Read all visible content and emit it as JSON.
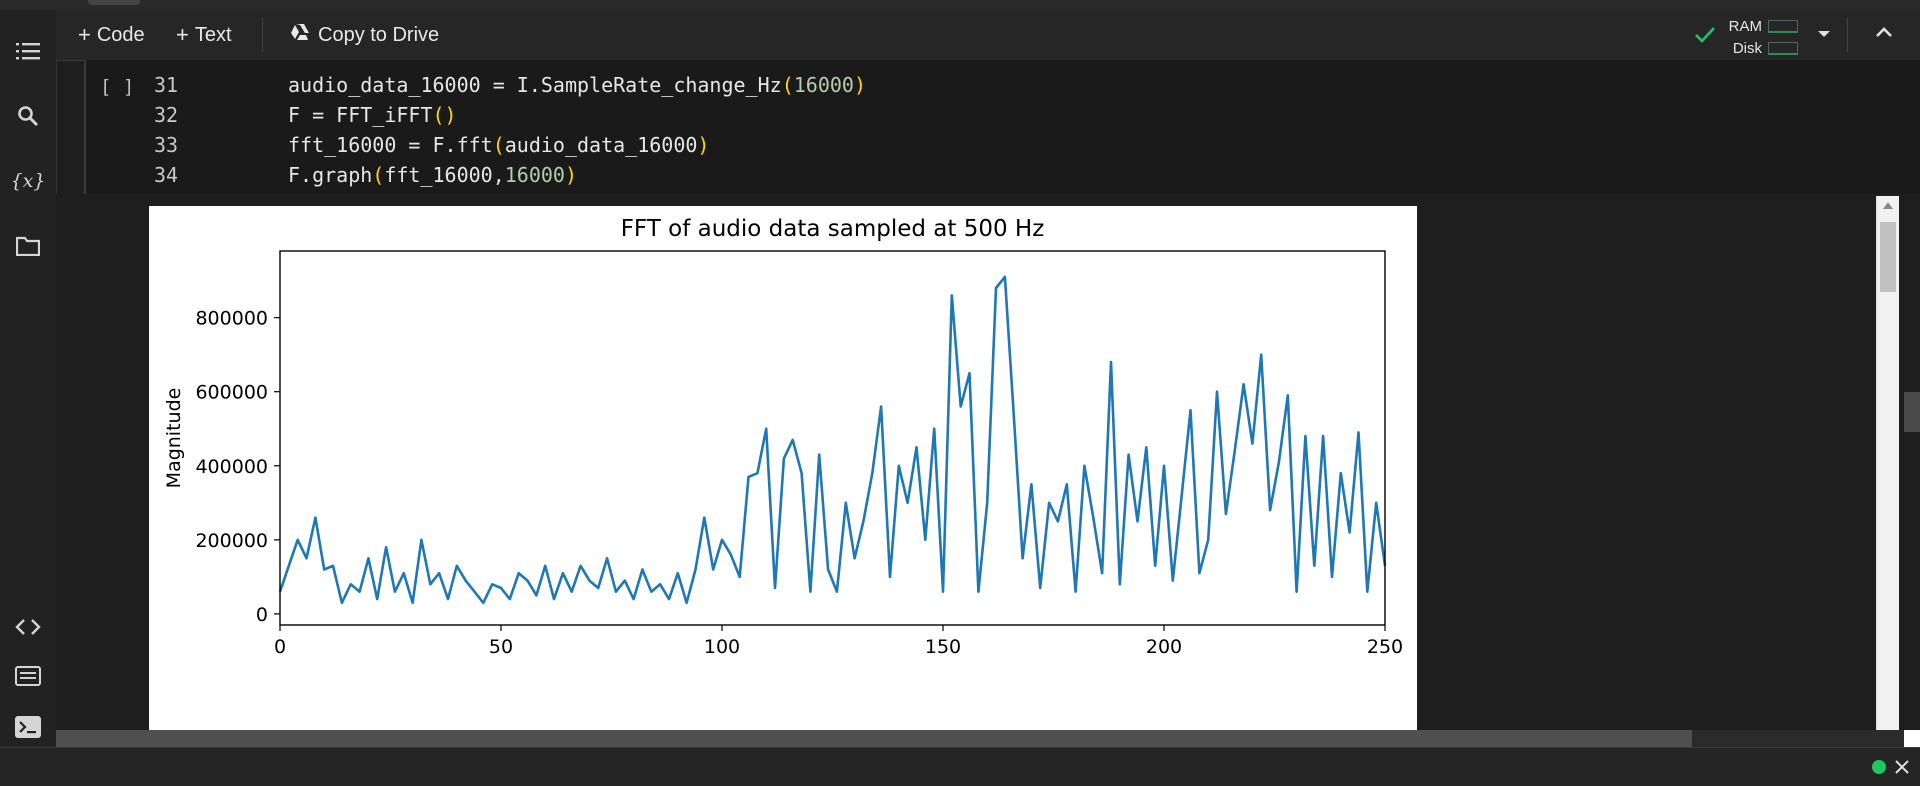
{
  "toolbar": {
    "add_code_label": "Code",
    "add_text_label": "Text",
    "copy_to_drive_label": "Copy to Drive",
    "ram_label": "RAM",
    "disk_label": "Disk"
  },
  "code_cell": {
    "run_indicator": "[ ]",
    "lines": [
      {
        "num": "31",
        "parts": [
          [
            "t",
            "audio_data_16000 = I.SampleRate_change_Hz"
          ],
          [
            "p",
            "("
          ],
          [
            "n",
            "16000"
          ],
          [
            "p",
            ")"
          ]
        ]
      },
      {
        "num": "32",
        "parts": [
          [
            "t",
            "F = FFT_iFFT"
          ],
          [
            "p",
            "()"
          ]
        ]
      },
      {
        "num": "33",
        "parts": [
          [
            "t",
            "fft_16000 = F.fft"
          ],
          [
            "p",
            "("
          ],
          [
            "t",
            "audio_data_16000"
          ],
          [
            "p",
            ")"
          ]
        ]
      },
      {
        "num": "34",
        "parts": [
          [
            "t",
            "F.graph"
          ],
          [
            "p",
            "("
          ],
          [
            "t",
            "fft_16000,"
          ],
          [
            "n",
            "16000"
          ],
          [
            "p",
            ")"
          ]
        ]
      }
    ]
  },
  "colors": {
    "line": "#1f77b4",
    "status_connected": "#1ec763",
    "ram_ok": "#2e8b57"
  },
  "icons": [
    "table-of-contents-icon",
    "search-icon",
    "variables-icon",
    "folder-icon",
    "code-snippets-icon",
    "command-palette-icon",
    "terminal-icon",
    "check-icon",
    "caret-down-icon",
    "collapse-icon",
    "close-icon",
    "drive-icon"
  ],
  "chart_data": {
    "type": "line",
    "title": "FFT of audio data sampled at 500 Hz",
    "xlabel": "",
    "ylabel": "Magnitude",
    "xlim": [
      0,
      250
    ],
    "ylim": [
      -30000,
      980000
    ],
    "xticks": [
      "0",
      "50",
      "100",
      "150",
      "200",
      "250"
    ],
    "yticks": [
      "0",
      "200000",
      "400000",
      "600000",
      "800000"
    ],
    "grid": false,
    "series": [
      {
        "x": [
          0,
          2,
          4,
          6,
          8,
          10,
          12,
          14,
          16,
          18,
          20,
          22,
          24,
          26,
          28,
          30,
          32,
          34,
          36,
          38,
          40,
          42,
          44,
          46,
          48,
          50,
          52,
          54,
          56,
          58,
          60,
          62,
          64,
          66,
          68,
          70,
          72,
          74,
          76,
          78,
          80,
          82,
          84,
          86,
          88,
          90,
          92,
          94,
          96,
          98,
          100,
          102,
          104,
          106,
          108,
          110,
          112,
          114,
          116,
          118,
          120,
          122,
          124,
          126,
          128,
          130,
          132,
          134,
          136,
          138,
          140,
          142,
          144,
          146,
          148,
          150,
          152,
          154,
          156,
          158,
          160,
          162,
          164,
          166,
          168,
          170,
          172,
          174,
          176,
          178,
          180,
          182,
          184,
          186,
          188,
          190,
          192,
          194,
          196,
          198,
          200,
          202,
          204,
          206,
          208,
          210,
          212,
          214,
          216,
          218,
          220,
          222,
          224,
          226,
          228,
          230,
          232,
          234,
          236,
          238,
          240,
          242,
          244,
          246,
          248,
          250
        ],
        "y": [
          60000,
          130000,
          200000,
          150000,
          260000,
          120000,
          130000,
          30000,
          80000,
          60000,
          150000,
          40000,
          180000,
          60000,
          110000,
          30000,
          200000,
          80000,
          110000,
          40000,
          130000,
          90000,
          60000,
          30000,
          80000,
          70000,
          40000,
          110000,
          90000,
          50000,
          130000,
          40000,
          110000,
          60000,
          130000,
          90000,
          70000,
          150000,
          60000,
          90000,
          40000,
          120000,
          60000,
          80000,
          40000,
          110000,
          30000,
          120000,
          260000,
          120000,
          200000,
          160000,
          100000,
          370000,
          380000,
          500000,
          70000,
          420000,
          470000,
          380000,
          60000,
          430000,
          120000,
          60000,
          300000,
          150000,
          250000,
          380000,
          560000,
          100000,
          400000,
          300000,
          450000,
          200000,
          500000,
          60000,
          860000,
          560000,
          650000,
          60000,
          300000,
          880000,
          910000,
          540000,
          150000,
          350000,
          70000,
          300000,
          250000,
          350000,
          60000,
          400000,
          260000,
          110000,
          680000,
          80000,
          430000,
          250000,
          450000,
          130000,
          400000,
          90000,
          320000,
          550000,
          110000,
          200000,
          600000,
          270000,
          440000,
          620000,
          460000,
          700000,
          280000,
          410000,
          590000,
          60000,
          480000,
          130000,
          480000,
          100000,
          380000,
          220000,
          490000,
          60000,
          300000,
          130000
        ]
      }
    ]
  }
}
